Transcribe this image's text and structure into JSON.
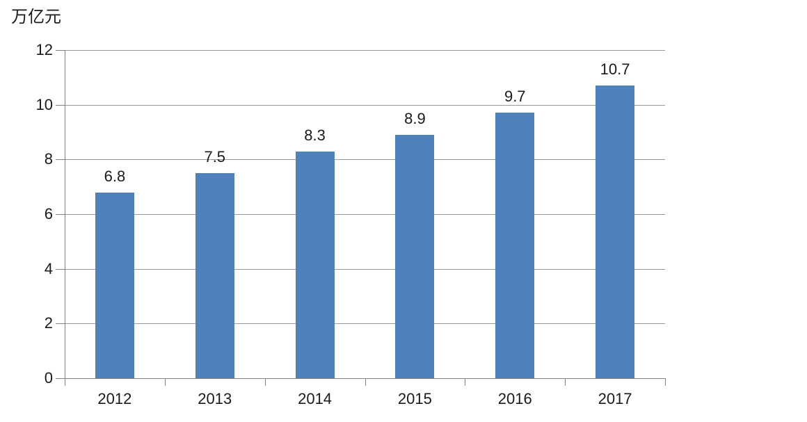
{
  "figure": {
    "background": "#ffffff"
  },
  "colors": {
    "bar": "#4F81BD",
    "gridline": "#999999",
    "axis": "#808080",
    "text": "#1a1a1a"
  },
  "chart_data": {
    "type": "bar",
    "categories": [
      "2012",
      "2013",
      "2014",
      "2015",
      "2016",
      "2017"
    ],
    "values": [
      6.8,
      7.5,
      8.3,
      8.9,
      9.7,
      10.7
    ],
    "data_labels": [
      "6.8",
      "7.5",
      "8.3",
      "8.9",
      "9.7",
      "10.7"
    ],
    "title": "",
    "xlabel": "",
    "ylabel": "万亿元",
    "ylim": [
      0,
      12
    ],
    "yticks": [
      0,
      2,
      4,
      6,
      8,
      10,
      12
    ],
    "grid": true,
    "legend": "none",
    "bar_color": "#4F81BD"
  }
}
